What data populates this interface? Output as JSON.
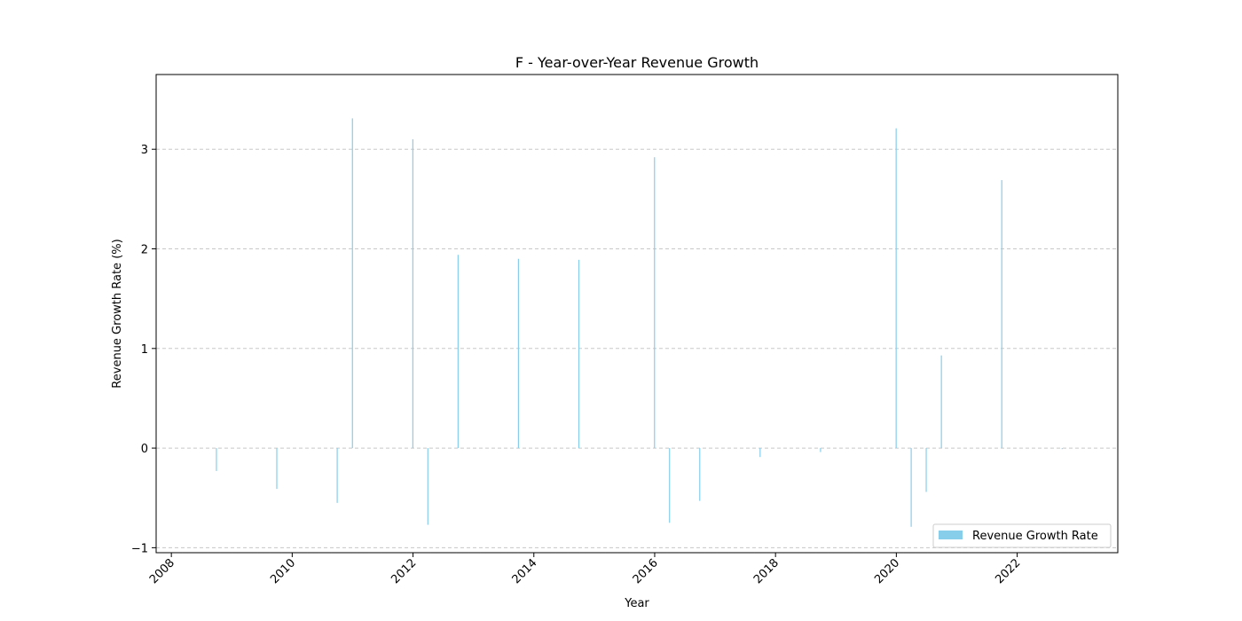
{
  "chart_data": {
    "type": "bar",
    "title": "F - Year-over-Year Revenue Growth",
    "xlabel": "Year",
    "ylabel": "Revenue Growth Rate (%)",
    "xlim": [
      "2007-10-01",
      "2023-09-01"
    ],
    "ylim": [
      -1.05,
      3.75
    ],
    "xticks": [
      "2008",
      "2010",
      "2012",
      "2014",
      "2016",
      "2018",
      "2020",
      "2022"
    ],
    "yticks": [
      "−1",
      "0",
      "1",
      "2",
      "3"
    ],
    "ytick_values": [
      -1,
      0,
      1,
      2,
      3
    ],
    "grid": "horizontal, dashed",
    "legend": {
      "label": "Revenue Growth Rate",
      "placement": "lower-right"
    },
    "colors": {
      "bar": "#87ceeb",
      "grid": "#c8c8c8",
      "frame": "#000000"
    },
    "series": [
      {
        "name": "Revenue Growth Rate",
        "dates": [
          "2008-09-30",
          "2009-09-30",
          "2010-09-30",
          "2010-12-31",
          "2011-12-31",
          "2012-03-31",
          "2012-09-30",
          "2013-09-30",
          "2014-09-30",
          "2015-12-31",
          "2016-03-31",
          "2016-09-30",
          "2017-09-30",
          "2018-09-30",
          "2019-12-31",
          "2020-03-31",
          "2020-06-30",
          "2020-09-30",
          "2021-09-30",
          "2022-09-30"
        ],
        "values": [
          -0.23,
          -0.41,
          -0.55,
          3.31,
          3.1,
          -0.77,
          1.94,
          1.9,
          1.89,
          2.92,
          -0.75,
          -0.53,
          -0.09,
          -0.04,
          3.21,
          -0.79,
          -0.44,
          0.93,
          2.69,
          -0.01
        ]
      }
    ]
  }
}
